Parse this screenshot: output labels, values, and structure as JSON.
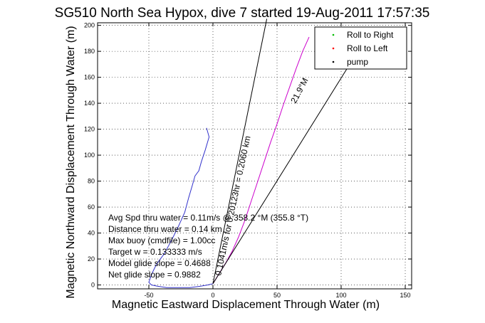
{
  "chart_data": {
    "type": "line",
    "title": "SG510 North Sea Hypox, dive 7 started 19-Aug-2011 17:57:35",
    "xlabel": "Magnetic Eastward Displacement Through Water (m)",
    "ylabel": "Magnetic Northward Displacement Through Water (m)",
    "xlim": [
      -90,
      155
    ],
    "ylim": [
      -3,
      202
    ],
    "x_ticks": [
      -50,
      0,
      50,
      100,
      150
    ],
    "y_ticks": [
      0,
      20,
      40,
      60,
      80,
      100,
      120,
      140,
      160,
      180,
      200
    ],
    "grid": true,
    "legend_position": "top-right",
    "legend": [
      {
        "label": "Roll to Right",
        "color": "#00bb00",
        "marker": "."
      },
      {
        "label": "Roll to Left",
        "color": "#ff0000",
        "marker": "."
      },
      {
        "label": "pump",
        "color": "#000000",
        "marker": "."
      }
    ],
    "series": [
      {
        "color": "#3333cc",
        "x": [
          -5,
          -3,
          -6,
          -9,
          -11,
          -14,
          -16,
          -19,
          -22,
          -27,
          -32,
          -38,
          -44,
          -47,
          -49,
          -50,
          -48,
          -43,
          -36,
          -27,
          -18,
          -10,
          -4,
          0
        ],
        "y": [
          121,
          114,
          104,
          95,
          88,
          84,
          77,
          67,
          56,
          45,
          35,
          24,
          16,
          10,
          5,
          2,
          0,
          -1,
          -2,
          -2,
          -2,
          -1,
          0,
          1
        ]
      },
      {
        "color": "#cc00cc",
        "x": [
          0,
          5,
          10,
          15,
          20,
          25,
          30,
          35,
          40,
          45,
          50,
          55,
          60,
          65,
          70,
          75
        ],
        "y": [
          1,
          9,
          17,
          26,
          37,
          50,
          65,
          80,
          95,
          110,
          124,
          139,
          153,
          167,
          180,
          191
        ]
      },
      {
        "color": "#000000",
        "x": [
          0,
          42
        ],
        "y": [
          1,
          205
        ]
      },
      {
        "color": "#000000",
        "x": [
          0,
          113
        ],
        "y": [
          1,
          180
        ]
      }
    ],
    "annotations": [
      {
        "text": "21.9°M",
        "rotation": -62
      },
      {
        "text": "0.1041m/s for 0.20123hr = 0.2060 km",
        "rotation": -78
      }
    ],
    "stats_lines": [
      "Avg Spd thru water = 0.11m/s @ 358.2   °M (355.8 °T)",
      "Distance thru water = 0.14 km",
      "Max buoy (cmdfile) = 1.00cc",
      "Target w = 0.133333 m/s",
      "Model glide slope = 0.4688",
      "Net glide slope = 0.9882"
    ]
  }
}
